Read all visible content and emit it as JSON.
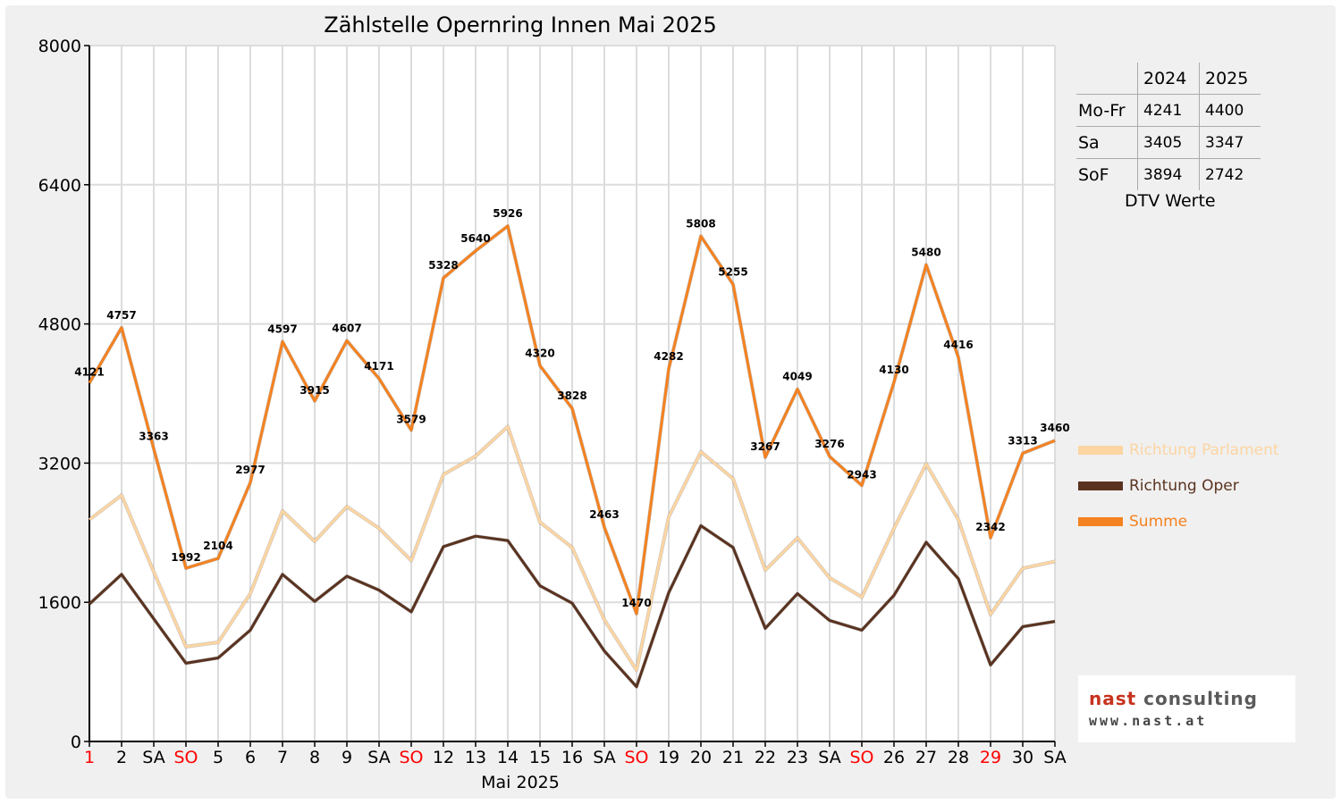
{
  "chart_data": {
    "type": "line",
    "title": "Zählstelle Opernring Innen Mai 2025",
    "xlabel": "Mai 2025",
    "ylabel": "",
    "ylim": [
      0,
      8000
    ],
    "yticks": [
      0,
      1600,
      3200,
      4800,
      6400,
      8000
    ],
    "grid": true,
    "legend_position": "right",
    "categories": [
      "1",
      "2",
      "SA",
      "SO",
      "5",
      "6",
      "7",
      "8",
      "9",
      "SA",
      "SO",
      "12",
      "13",
      "14",
      "15",
      "16",
      "SA",
      "SO",
      "19",
      "20",
      "21",
      "22",
      "23",
      "SA",
      "SO",
      "26",
      "27",
      "28",
      "29",
      "30",
      "SA"
    ],
    "red_categories": [
      0,
      3,
      10,
      17,
      24,
      28
    ],
    "series": [
      {
        "name": "Richtung Parlament",
        "color": "#fcd5a2",
        "values": [
          2550,
          2830,
          1950,
          1090,
          1140,
          1700,
          2650,
          2300,
          2700,
          2450,
          2080,
          3070,
          3280,
          3620,
          2520,
          2230,
          1400,
          820,
          2580,
          3330,
          3020,
          1970,
          2340,
          1880,
          1660,
          2450,
          3190,
          2550,
          1460,
          1990,
          2070
        ]
      },
      {
        "name": "Richtung Oper",
        "color": "#5a3320",
        "values": [
          1580,
          1920,
          1410,
          900,
          960,
          1280,
          1920,
          1610,
          1900,
          1740,
          1490,
          2240,
          2360,
          2310,
          1790,
          1590,
          1040,
          630,
          1710,
          2480,
          2230,
          1300,
          1700,
          1390,
          1280,
          1680,
          2290,
          1870,
          880,
          1320,
          1380
        ]
      },
      {
        "name": "Summe",
        "color": "#f58220",
        "values": [
          4121,
          4757,
          3363,
          1992,
          2104,
          2977,
          4597,
          3915,
          4607,
          4171,
          3579,
          5328,
          5640,
          5926,
          4320,
          3828,
          2463,
          1470,
          4282,
          5808,
          5255,
          3267,
          4049,
          3276,
          2943,
          4130,
          5480,
          4416,
          2342,
          3313,
          3460
        ]
      }
    ],
    "data_labels": [
      "4121",
      "4757",
      "3363",
      "1992",
      "2104",
      "2977",
      "4597",
      "3915",
      "4607",
      "4171",
      "3579",
      "5328",
      "5640",
      "5926",
      "4320",
      "3828",
      "2463",
      "1470",
      "4282",
      "5808",
      "5255",
      "3267",
      "4049",
      "3276",
      "2943",
      "4130",
      "5480",
      "4416",
      "2342",
      "3313",
      "3460"
    ]
  },
  "dtv_table": {
    "caption": "DTV Werte",
    "headers": [
      "",
      "2024",
      "2025"
    ],
    "rows": [
      {
        "label": "Mo-Fr",
        "v2024": "4241",
        "v2025": "4400"
      },
      {
        "label": "Sa",
        "v2024": "3405",
        "v2025": "3347"
      },
      {
        "label": "SoF",
        "v2024": "3894",
        "v2025": "2742"
      }
    ]
  },
  "legend": [
    {
      "label": "Richtung Parlament",
      "color": "#fcd5a2"
    },
    {
      "label": "Richtung Oper",
      "color": "#5a3320"
    },
    {
      "label": "Summe",
      "color": "#f58220"
    }
  ],
  "logo": {
    "name_part1": "nast",
    "name_part2": "consulting",
    "url": "www.nast.at"
  }
}
